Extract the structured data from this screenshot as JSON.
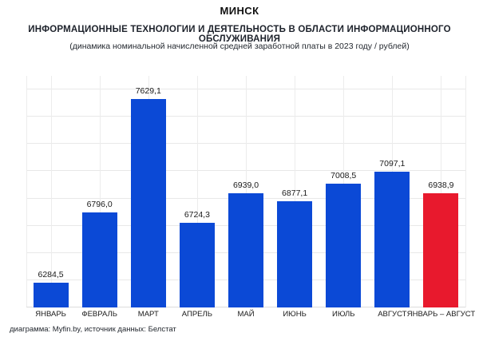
{
  "header": {
    "title": "МИНСК",
    "subtitle": "ИНФОРМАЦИОННЫЕ ТЕХНОЛОГИИ И ДЕЯТЕЛЬНОСТЬ В ОБЛАСТИ ИНФОРМАЦИОННОГО ОБСЛУЖИВАНИЯ",
    "note": "(динамика номинальной начисленной средней заработной платы в 2023 году / рублей)"
  },
  "chart_data": {
    "type": "bar",
    "title": "МИНСК",
    "subtitle": "ИНФОРМАЦИОННЫЕ ТЕХНОЛОГИИ И ДЕЯТЕЛЬНОСТЬ В ОБЛАСТИ ИНФОРМАЦИОННОГО ОБСЛУЖИВАНИЯ",
    "note": "(динамика номинальной начисленной средней заработной платы в 2023 году / рублей)",
    "categories": [
      "ЯНВАРЬ",
      "ФЕВРАЛЬ",
      "МАРТ",
      "АПРЕЛЬ",
      "МАЙ",
      "ИЮНЬ",
      "ИЮЛЬ",
      "АВГУСТ",
      "ЯНВАРЬ – АВГУСТ"
    ],
    "values": [
      6284.5,
      6796.0,
      7629.1,
      6724.3,
      6939.0,
      6877.1,
      7008.5,
      7097.1,
      6938.9
    ],
    "value_labels": [
      "6284,5",
      "6796,0",
      "7629,1",
      "6724,3",
      "6939,0",
      "6877,1",
      "7008,5",
      "7097,1",
      "6938,9"
    ],
    "xlabel": "",
    "ylabel": "",
    "ylim": [
      6100,
      7800
    ],
    "grid_step": 200,
    "grid": true,
    "legend": false,
    "bar_color": "#0b49d6",
    "highlight_color": "#e8192d",
    "highlight_index": 8,
    "text_color": "#1a1a1a"
  },
  "footer": {
    "credit": "диаграмма: Myfin.by, источник данных: Белстат"
  }
}
